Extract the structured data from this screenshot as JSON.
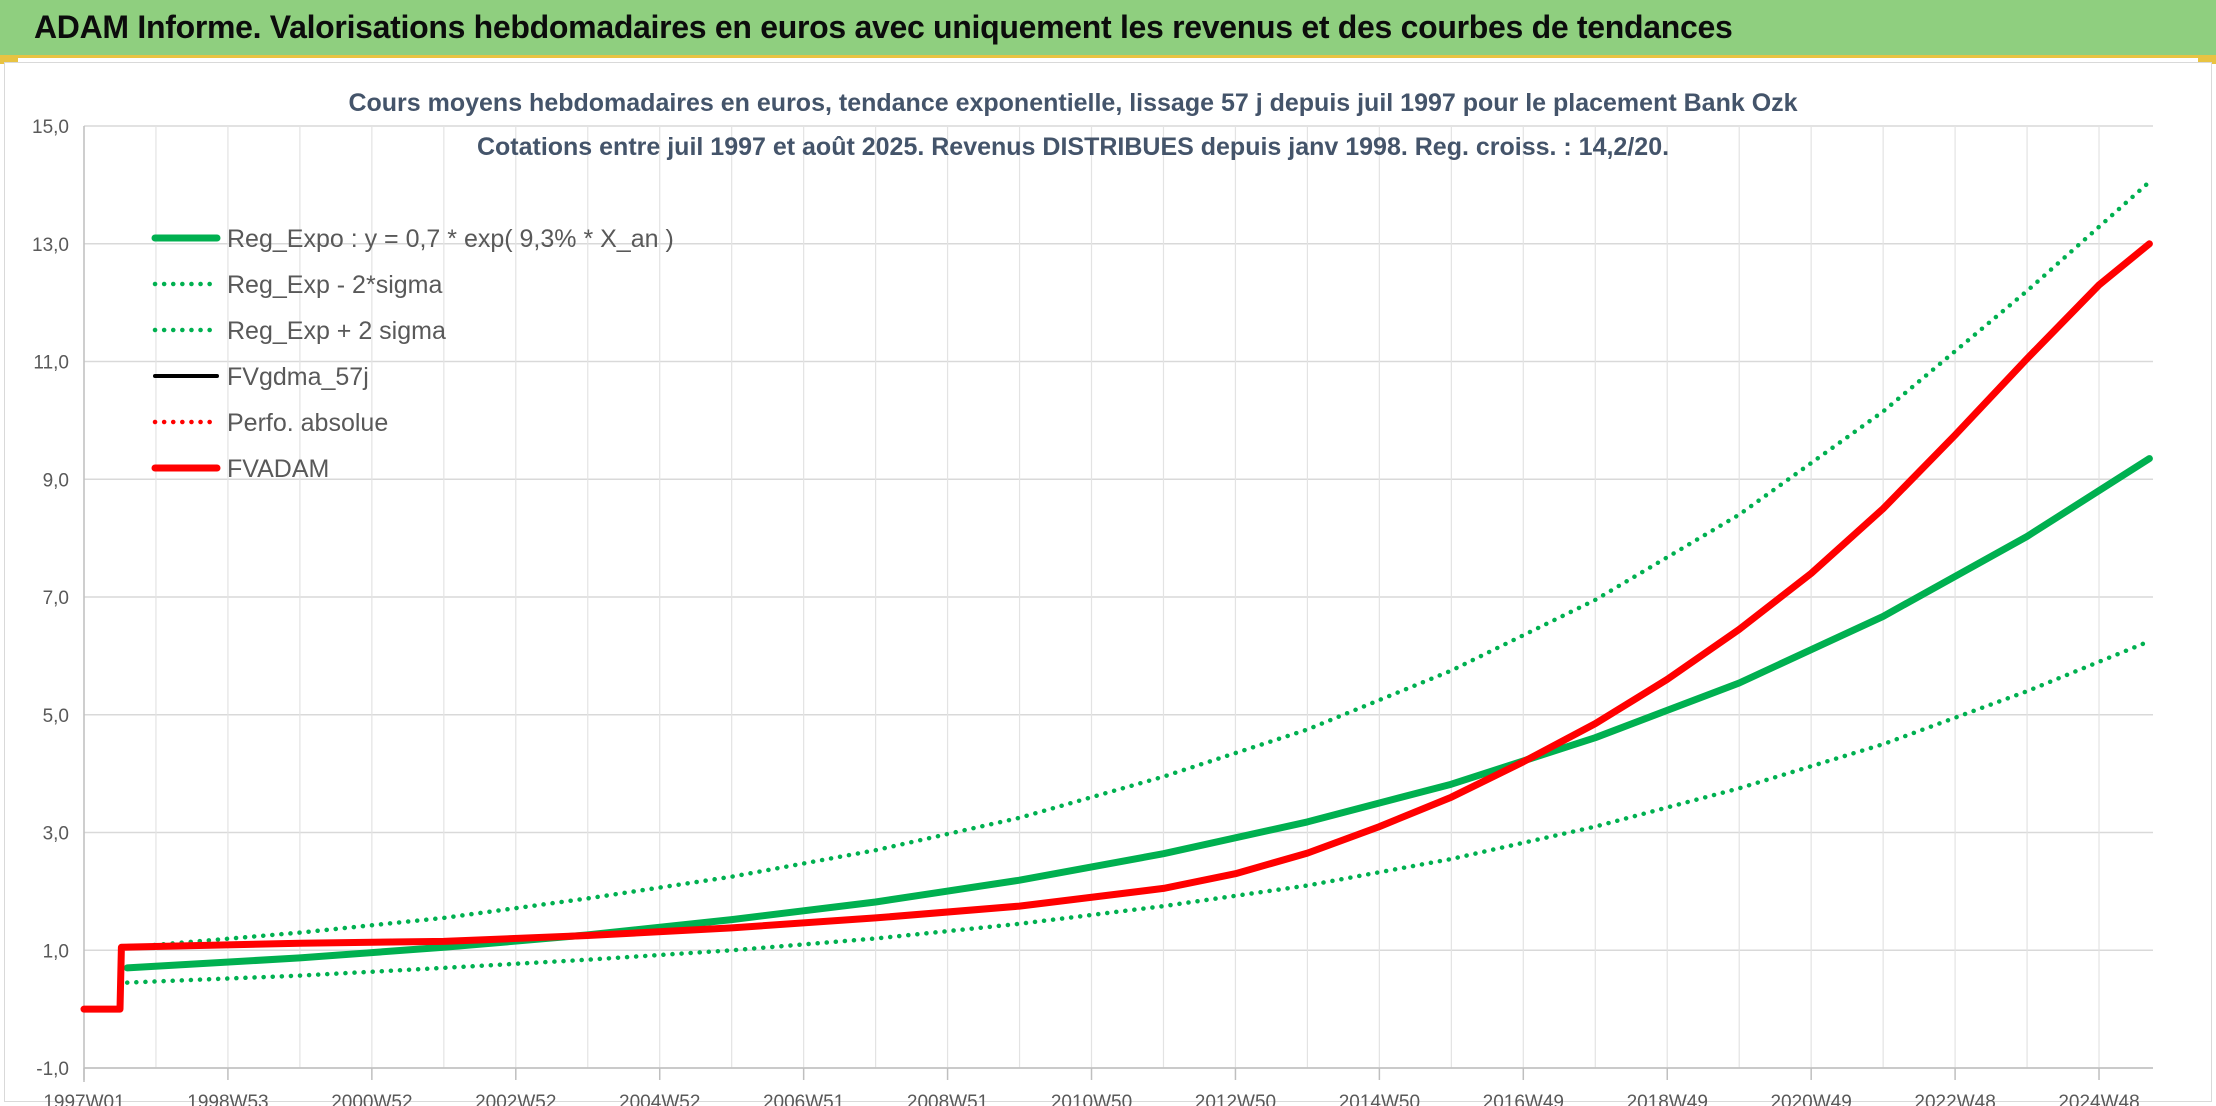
{
  "banner": {
    "title": "ADAM Informe. Valorisations hebdomadaires en euros avec uniquement les revenus et des courbes de tendances"
  },
  "colors": {
    "banner_bg": "#8fcf7f",
    "accent_yellow": "#e8c342",
    "trend_green": "#00b050",
    "adam_red": "#ff0000",
    "gdma_black": "#000000"
  },
  "chart_data": {
    "type": "line",
    "title_lines": [
      "Cours moyens hebdomadaires en euros, tendance exponentielle, lissage 57 j depuis juil 1997 pour le placement Bank Ozk",
      "Cotations entre juil 1997 et août 2025. Revenus DISTRIBUES depuis janv 1998. Reg. croiss. : 14,2/20."
    ],
    "xlabel": "",
    "ylabel": "",
    "x_range": [
      1997.0,
      2025.75
    ],
    "ylim": [
      -1.0,
      15.0
    ],
    "y_ticks": [
      "-1,0",
      "1,0",
      "3,0",
      "5,0",
      "7,0",
      "9,0",
      "11,0",
      "13,0",
      "15,0"
    ],
    "y_tick_values": [
      -1,
      1,
      3,
      5,
      7,
      9,
      11,
      13,
      15
    ],
    "x_ticks": [
      "1997W01",
      "1998W53",
      "2000W52",
      "2002W52",
      "2004W52",
      "2006W51",
      "2008W51",
      "2010W50",
      "2012W50",
      "2014W50",
      "2016W49",
      "2018W49",
      "2020W49",
      "2022W48",
      "2024W48"
    ],
    "x_tick_values": [
      1997.0,
      1999.0,
      2001.0,
      2003.0,
      2005.0,
      2007.0,
      2009.0,
      2011.0,
      2013.0,
      2015.0,
      2017.0,
      2019.0,
      2021.0,
      2023.0,
      2025.0
    ],
    "grid": true,
    "legend_position": "top-left",
    "series": [
      {
        "name": "Reg_Expo : y = 0,7 * exp( 9,3% *  X_an )",
        "style": "solid-thick",
        "color": "#00b050",
        "x": [
          1997.6,
          2000.0,
          2002.0,
          2004.0,
          2006.0,
          2008.0,
          2010.0,
          2012.0,
          2014.0,
          2016.0,
          2018.0,
          2020.0,
          2022.0,
          2024.0,
          2025.7
        ],
        "y": [
          0.7,
          0.87,
          1.05,
          1.26,
          1.52,
          1.82,
          2.19,
          2.64,
          3.18,
          3.82,
          4.61,
          5.54,
          6.67,
          8.03,
          9.35
        ]
      },
      {
        "name": "Reg_Exp - 2*sigma",
        "style": "dotted",
        "color": "#00b050",
        "x": [
          1997.6,
          2000.0,
          2002.0,
          2004.0,
          2006.0,
          2008.0,
          2010.0,
          2012.0,
          2014.0,
          2016.0,
          2018.0,
          2020.0,
          2022.0,
          2024.0,
          2025.7
        ],
        "y": [
          0.45,
          0.57,
          0.7,
          0.84,
          1.0,
          1.2,
          1.45,
          1.75,
          2.1,
          2.55,
          3.1,
          3.75,
          4.5,
          5.4,
          6.25
        ]
      },
      {
        "name": "Reg_Exp + 2 sigma",
        "style": "dotted",
        "color": "#00b050",
        "x": [
          1997.6,
          2000.0,
          2002.0,
          2004.0,
          2006.0,
          2008.0,
          2010.0,
          2012.0,
          2014.0,
          2016.0,
          2018.0,
          2020.0,
          2022.0,
          2024.0,
          2025.7
        ],
        "y": [
          1.05,
          1.3,
          1.55,
          1.88,
          2.25,
          2.7,
          3.25,
          3.95,
          4.75,
          5.75,
          6.95,
          8.4,
          10.15,
          12.2,
          14.05
        ]
      },
      {
        "name": "FVgdma_57j",
        "style": "solid",
        "color": "#000000",
        "x": [
          1997.0,
          1997.5,
          1997.52,
          2000.0,
          2002.0,
          2004.0,
          2006.0,
          2008.0,
          2010.0,
          2012.0,
          2013.0,
          2014.0,
          2015.0,
          2016.0,
          2017.0,
          2018.0,
          2019.0,
          2020.0,
          2021.0,
          2022.0,
          2023.0,
          2024.0,
          2025.0,
          2025.7
        ],
        "y": [
          0.0,
          0.0,
          1.05,
          1.12,
          1.15,
          1.25,
          1.38,
          1.55,
          1.75,
          2.05,
          2.3,
          2.65,
          3.1,
          3.6,
          4.2,
          4.85,
          5.6,
          6.45,
          7.4,
          8.5,
          9.75,
          11.05,
          12.3,
          13.0
        ]
      },
      {
        "name": "Perfo. absolue",
        "style": "dotted",
        "color": "#ff0000",
        "x": [
          1997.0,
          1997.5,
          1997.52,
          2000.0,
          2002.0,
          2004.0,
          2006.0,
          2008.0,
          2010.0,
          2012.0,
          2013.0,
          2014.0,
          2015.0,
          2016.0,
          2017.0,
          2018.0,
          2019.0,
          2020.0,
          2021.0,
          2022.0,
          2023.0,
          2024.0,
          2025.0,
          2025.7
        ],
        "y": [
          0.0,
          0.0,
          1.05,
          1.12,
          1.15,
          1.25,
          1.38,
          1.55,
          1.75,
          2.05,
          2.3,
          2.65,
          3.1,
          3.6,
          4.2,
          4.85,
          5.6,
          6.45,
          7.4,
          8.5,
          9.75,
          11.05,
          12.3,
          13.0
        ]
      },
      {
        "name": "FVADAM",
        "style": "solid-thick",
        "color": "#ff0000",
        "x": [
          1997.0,
          1997.5,
          1997.52,
          2000.0,
          2002.0,
          2004.0,
          2006.0,
          2008.0,
          2010.0,
          2012.0,
          2013.0,
          2014.0,
          2015.0,
          2016.0,
          2017.0,
          2018.0,
          2019.0,
          2020.0,
          2021.0,
          2022.0,
          2023.0,
          2024.0,
          2025.0,
          2025.7
        ],
        "y": [
          0.0,
          0.0,
          1.05,
          1.12,
          1.15,
          1.25,
          1.38,
          1.55,
          1.75,
          2.05,
          2.3,
          2.65,
          3.1,
          3.6,
          4.2,
          4.85,
          5.6,
          6.45,
          7.4,
          8.5,
          9.75,
          11.05,
          12.3,
          13.0
        ]
      }
    ]
  }
}
